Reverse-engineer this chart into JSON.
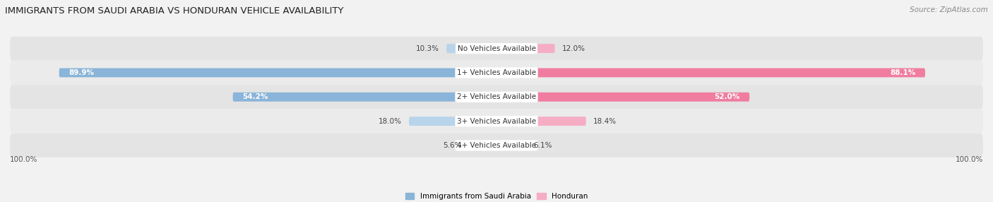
{
  "title": "IMMIGRANTS FROM SAUDI ARABIA VS HONDURAN VEHICLE AVAILABILITY",
  "source": "Source: ZipAtlas.com",
  "categories": [
    "No Vehicles Available",
    "1+ Vehicles Available",
    "2+ Vehicles Available",
    "3+ Vehicles Available",
    "4+ Vehicles Available"
  ],
  "saudi_values": [
    10.3,
    89.9,
    54.2,
    18.0,
    5.6
  ],
  "honduran_values": [
    12.0,
    88.1,
    52.0,
    18.4,
    6.1
  ],
  "saudi_color": "#8ab4d8",
  "honduran_color": "#f07ca0",
  "saudi_color_light": "#b8d4ea",
  "honduran_color_light": "#f5adc4",
  "saudi_label": "Immigrants from Saudi Arabia",
  "honduran_label": "Honduran",
  "background_color": "#f2f2f2",
  "row_color_odd": "#e8e8e8",
  "row_color_even": "#f0f0f0",
  "max_value": 100.0,
  "bar_height": 0.52,
  "figsize": [
    14.06,
    2.86
  ],
  "dpi": 100
}
